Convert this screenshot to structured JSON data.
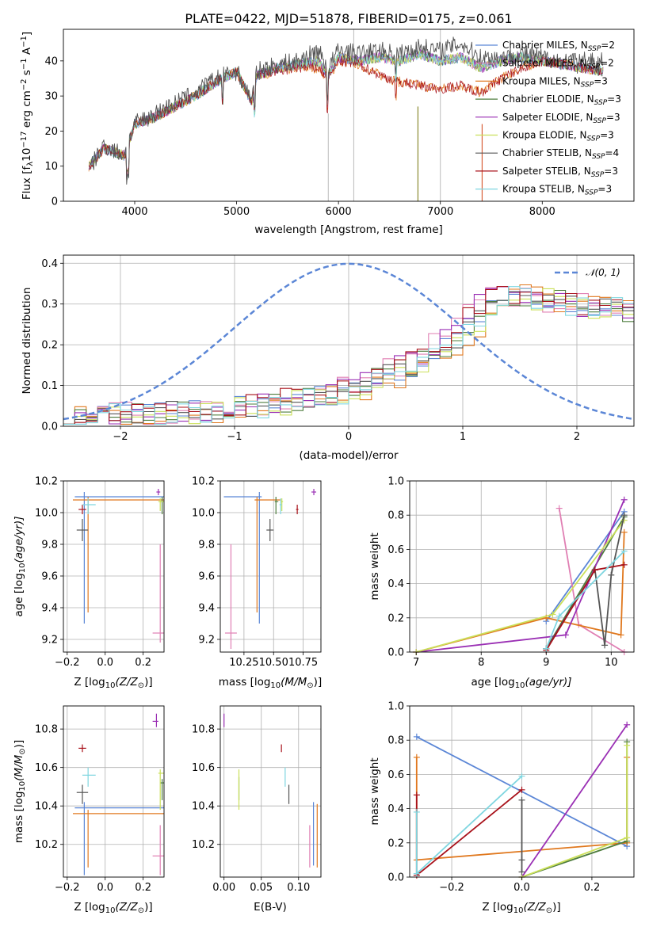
{
  "colors": {
    "chabrier_miles": "#5b86d6",
    "salpeter_miles": "#e07fb3",
    "kroupa_miles": "#e0781e",
    "chabrier_elodie": "#4e7d3e",
    "salpeter_elodie": "#9a2fb4",
    "kroupa_elodie": "#cbe05a",
    "chabrier_stelib": "#555555",
    "salpeter_stelib": "#a8111a",
    "kroupa_stelib": "#7fd6e0",
    "normal_curve": "#5b86d6",
    "grid": "#b0b0b0"
  },
  "spectrum": {
    "title": "PLATE=0422, MJD=51878, FIBERID=0175, z=0.061",
    "xlabel": "wavelength [Angstrom, rest frame]",
    "ylabel_main": "Flux [f",
    "ylabel_sub1": "λ",
    "ylabel_mid": "10",
    "ylabel_sup1": "−17",
    "ylabel_mid2": " erg cm",
    "ylabel_sup2": "−2",
    "ylabel_mid3": " s",
    "ylabel_sup3": "−1",
    "ylabel_end": " A",
    "ylabel_sup4": "−1",
    "ylabel_close": "]",
    "xticks": [
      "4000",
      "5000",
      "6000",
      "7000",
      "8000"
    ],
    "yticks": [
      "0",
      "10",
      "20",
      "30",
      "40"
    ],
    "legend": [
      {
        "label": "Chabrier MILES, N",
        "sub": "SSP",
        "tail": "=2"
      },
      {
        "label": "Salpeter MILES, N",
        "sub": "SSP",
        "tail": "=2"
      },
      {
        "label": "Kroupa MILES, N",
        "sub": "SSP",
        "tail": "=3"
      },
      {
        "label": "Chabrier ELODIE, N",
        "sub": "SSP",
        "tail": "=3"
      },
      {
        "label": "Salpeter ELODIE, N",
        "sub": "SSP",
        "tail": "=3"
      },
      {
        "label": "Kroupa ELODIE, N",
        "sub": "SSP",
        "tail": "=3"
      },
      {
        "label": "Chabrier STELIB, N",
        "sub": "SSP",
        "tail": "=4"
      },
      {
        "label": "Salpeter STELIB, N",
        "sub": "SSP",
        "tail": "=3"
      },
      {
        "label": "Kroupa STELIB, N",
        "sub": "SSP",
        "tail": "=3"
      }
    ]
  },
  "residuals": {
    "xlabel": "(data-model)/error",
    "ylabel": "Normed distribution",
    "xticks": [
      "−2",
      "−1",
      "0",
      "1",
      "2"
    ],
    "yticks": [
      "0.0",
      "0.1",
      "0.2",
      "0.3",
      "0.4"
    ],
    "legend_label": "𝒩(0, 1)"
  },
  "age_vs_z": {
    "xlabel": "Z [log",
    "xlabel_sub": "10",
    "xlabel_tail": "(Z/Z",
    "xlabel_sub2": "⊙",
    "xlabel_end": ")]",
    "ylabel": "age  [log",
    "ylabel_sub": "10",
    "ylabel_tail": "(age/yr)]",
    "xticks": [
      "−0.2",
      "0.0",
      "0.2"
    ],
    "yticks": [
      "9.2",
      "9.4",
      "9.6",
      "9.8",
      "10.0",
      "10.2"
    ]
  },
  "age_vs_mass": {
    "xlabel": "mass [log",
    "xlabel_sub": "10",
    "xlabel_tail": "(M/M",
    "xlabel_sub2": "⊙",
    "xlabel_end": ")]",
    "xticks": [
      "10.25",
      "10.50",
      "10.75"
    ],
    "yticks": [
      "9.2",
      "9.4",
      "9.6",
      "9.8",
      "10.0",
      "10.2"
    ]
  },
  "weight_vs_age": {
    "xlabel": "age  [log",
    "xlabel_sub": "10",
    "xlabel_tail": "(age/yr)]",
    "ylabel": "mass weight",
    "xticks": [
      "7",
      "8",
      "9",
      "10"
    ],
    "yticks": [
      "0.0",
      "0.2",
      "0.4",
      "0.6",
      "0.8",
      "1.0"
    ]
  },
  "mass_vs_z": {
    "xlabel": "Z [log",
    "xlabel_sub": "10",
    "xlabel_tail": "(Z/Z",
    "xlabel_sub2": "⊙",
    "xlabel_end": ")]",
    "ylabel": "mass [log",
    "ylabel_sub": "10",
    "ylabel_tail": "(M/M",
    "ylabel_sub2": "⊙",
    "ylabel_end": ")]",
    "xticks": [
      "−0.2",
      "0.0",
      "0.2"
    ],
    "yticks": [
      "10.2",
      "10.4",
      "10.6",
      "10.8"
    ]
  },
  "mass_vs_ebv": {
    "xlabel": "E(B-V)",
    "xticks": [
      "0.00",
      "0.05",
      "0.10"
    ],
    "yticks": [
      "10.2",
      "10.4",
      "10.6",
      "10.8"
    ]
  },
  "weight_vs_z": {
    "xlabel": "Z [log",
    "xlabel_sub": "10",
    "xlabel_tail": "(Z/Z",
    "xlabel_sub2": "⊙",
    "xlabel_end": ")]",
    "ylabel": "mass weight",
    "xticks": [
      "−0.2",
      "0.0",
      "0.2"
    ],
    "yticks": [
      "0.0",
      "0.2",
      "0.4",
      "0.6",
      "0.8",
      "1.0"
    ]
  },
  "chart_data": [
    {
      "type": "line",
      "title": "PLATE=0422, MJD=51878, FIBERID=0175, z=0.061",
      "xlabel": "wavelength [Angstrom, rest frame]",
      "ylabel": "Flux [fλ10^-17 erg cm^-2 s^-1 A^-1]",
      "xlim": [
        3300,
        8900
      ],
      "ylim": [
        0,
        49
      ],
      "legend_placement": "top-right",
      "grid": false,
      "x": [
        3550,
        3700,
        3900,
        4000,
        4200,
        4400,
        4600,
        4800,
        5000,
        5150,
        5200,
        5400,
        5600,
        5800,
        5900,
        6000,
        6200,
        6400,
        6600,
        6800,
        7000,
        7200,
        7400,
        7600,
        7800,
        8000,
        8200,
        8400,
        8600
      ],
      "series": [
        {
          "name": "Chabrier MILES, N_SSP=2",
          "values": [
            10,
            15,
            13,
            22,
            24,
            27,
            30,
            34,
            37,
            28,
            36,
            38,
            39,
            40,
            36,
            41,
            40,
            41,
            40,
            42,
            40,
            41,
            38,
            40,
            41,
            40,
            39,
            38,
            37
          ]
        },
        {
          "name": "Kroupa MILES, N_SSP=3",
          "values": [
            10,
            15,
            13,
            22,
            24,
            27,
            30,
            34,
            37,
            28,
            36,
            37,
            38,
            38,
            35,
            40,
            39,
            36,
            34,
            33,
            32,
            33,
            31,
            35,
            38,
            40,
            39,
            38,
            37
          ]
        },
        {
          "name": "Chabrier STELIB, N_SSP=4",
          "values": [
            9,
            16,
            13,
            22,
            25,
            28,
            31,
            35,
            37,
            29,
            37,
            39,
            40,
            43,
            38,
            43,
            42,
            43,
            42,
            44,
            43,
            45,
            41,
            41,
            42,
            41,
            40,
            39,
            38
          ]
        }
      ]
    },
    {
      "type": "line",
      "xlabel": "(data-model)/error",
      "ylabel": "Normed distribution",
      "xlim": [
        -2.5,
        2.5
      ],
      "ylim": [
        0,
        0.42
      ],
      "grid": true,
      "legend_placement": "top-right",
      "series": [
        {
          "name": "𝒩(0, 1)",
          "x": [
            -2.5,
            -2.0,
            -1.5,
            -1.0,
            -0.5,
            0.0,
            0.5,
            1.0,
            1.5,
            2.0,
            2.5
          ],
          "values": [
            0.018,
            0.054,
            0.13,
            0.242,
            0.352,
            0.399,
            0.352,
            0.242,
            0.13,
            0.054,
            0.018
          ]
        }
      ]
    },
    {
      "type": "scatter",
      "xlabel": "Z [log10(Z/Z⊙)]",
      "ylabel": "age [log10(age/yr)]",
      "xlim": [
        -0.22,
        0.31
      ],
      "ylim": [
        9.12,
        10.2
      ],
      "grid": true,
      "points": [
        {
          "series": "Chabrier MILES",
          "x": -0.11,
          "y": 10.1
        },
        {
          "series": "Salpeter MILES",
          "x": 0.29,
          "y": 9.24
        },
        {
          "series": "Kroupa MILES",
          "x": -0.09,
          "y": 10.08
        },
        {
          "series": "Chabrier ELODIE",
          "x": 0.3,
          "y": 10.07
        },
        {
          "series": "Salpeter ELODIE",
          "x": 0.28,
          "y": 10.13
        },
        {
          "series": "Kroupa ELODIE",
          "x": 0.29,
          "y": 10.07
        },
        {
          "series": "Chabrier STELIB",
          "x": -0.12,
          "y": 9.89
        },
        {
          "series": "Salpeter STELIB",
          "x": -0.12,
          "y": 10.02
        },
        {
          "series": "Kroupa STELIB",
          "x": -0.09,
          "y": 10.05
        }
      ]
    },
    {
      "type": "scatter",
      "xlabel": "mass [log10(M/M⊙)]",
      "xlim": [
        10.05,
        10.9
      ],
      "ylim": [
        9.12,
        10.2
      ],
      "grid": true,
      "points": [
        {
          "series": "Chabrier MILES",
          "x": 10.38,
          "y": 10.1
        },
        {
          "series": "Salpeter MILES",
          "x": 10.14,
          "y": 9.24
        },
        {
          "series": "Kroupa MILES",
          "x": 10.36,
          "y": 10.08
        },
        {
          "series": "Chabrier ELODIE",
          "x": 10.52,
          "y": 10.07
        },
        {
          "series": "Salpeter ELODIE",
          "x": 10.84,
          "y": 10.13
        },
        {
          "series": "Kroupa ELODIE",
          "x": 10.57,
          "y": 10.07
        },
        {
          "series": "Chabrier STELIB",
          "x": 10.47,
          "y": 9.89
        },
        {
          "series": "Salpeter STELIB",
          "x": 10.7,
          "y": 10.02
        },
        {
          "series": "Kroupa STELIB",
          "x": 10.56,
          "y": 10.05
        }
      ]
    },
    {
      "type": "line",
      "xlabel": "age [log10(age/yr)]",
      "ylabel": "mass weight",
      "xlim": [
        6.9,
        10.35
      ],
      "ylim": [
        0,
        1
      ],
      "grid": true,
      "series": [
        {
          "name": "Chabrier MILES",
          "x": [
            9.0,
            10.2
          ],
          "values": [
            0.18,
            0.82
          ]
        },
        {
          "name": "Salpeter MILES",
          "x": [
            9.2,
            9.5,
            10.2
          ],
          "values": [
            0.84,
            0.16,
            0.0
          ]
        },
        {
          "name": "Kroupa MILES",
          "x": [
            7.0,
            9.0,
            10.15,
            10.2
          ],
          "values": [
            0.0,
            0.2,
            0.1,
            0.7
          ]
        },
        {
          "name": "Chabrier ELODIE",
          "x": [
            9.0,
            10.2
          ],
          "values": [
            0.02,
            0.79
          ]
        },
        {
          "name": "Salpeter ELODIE",
          "x": [
            7.0,
            9.3,
            10.2
          ],
          "values": [
            0.0,
            0.1,
            0.89
          ]
        },
        {
          "name": "Kroupa ELODIE",
          "x": [
            7.0,
            9.1,
            10.2
          ],
          "values": [
            0.0,
            0.22,
            0.77
          ]
        },
        {
          "name": "Chabrier STELIB",
          "x": [
            9.0,
            9.75,
            9.9,
            10.0,
            10.2
          ],
          "values": [
            0.02,
            0.48,
            0.04,
            0.45,
            0.8
          ]
        },
        {
          "name": "Salpeter STELIB",
          "x": [
            9.0,
            9.75,
            10.2
          ],
          "values": [
            0.01,
            0.48,
            0.51
          ]
        },
        {
          "name": "Kroupa STELIB",
          "x": [
            9.0,
            9.2,
            10.2
          ],
          "values": [
            0.02,
            0.21,
            0.59
          ]
        }
      ]
    },
    {
      "type": "scatter",
      "xlabel": "Z [log10(Z/Z⊙)]",
      "ylabel": "mass [log10(M/M⊙)]",
      "xlim": [
        -0.22,
        0.31
      ],
      "ylim": [
        10.03,
        10.92
      ],
      "grid": true,
      "points": [
        {
          "series": "Chabrier MILES",
          "x": -0.11,
          "y": 10.39
        },
        {
          "series": "Salpeter MILES",
          "x": 0.29,
          "y": 10.14
        },
        {
          "series": "Kroupa MILES",
          "x": -0.09,
          "y": 10.36
        },
        {
          "series": "Chabrier ELODIE",
          "x": 0.3,
          "y": 10.52
        },
        {
          "series": "Salpeter ELODIE",
          "x": 0.27,
          "y": 10.84
        },
        {
          "series": "Kroupa ELODIE",
          "x": 0.29,
          "y": 10.57
        },
        {
          "series": "Chabrier STELIB",
          "x": -0.12,
          "y": 10.47
        },
        {
          "series": "Salpeter STELIB",
          "x": -0.12,
          "y": 10.7
        },
        {
          "series": "Kroupa STELIB",
          "x": -0.09,
          "y": 10.56
        }
      ]
    },
    {
      "type": "scatter",
      "xlabel": "E(B-V)",
      "xlim": [
        -0.005,
        0.13
      ],
      "ylim": [
        10.03,
        10.92
      ],
      "grid": true,
      "points": [
        {
          "series": "Chabrier MILES",
          "x": 0.12,
          "y": 10.39
        },
        {
          "series": "Salpeter MILES",
          "x": 0.115,
          "y": 10.14
        },
        {
          "series": "Kroupa MILES",
          "x": 0.125,
          "y": 10.36
        },
        {
          "series": "Chabrier ELODIE",
          "x": 0.02,
          "y": 10.52
        },
        {
          "series": "Salpeter ELODIE",
          "x": 0.0,
          "y": 10.84
        },
        {
          "series": "Kroupa ELODIE",
          "x": 0.02,
          "y": 10.57
        },
        {
          "series": "Chabrier STELIB",
          "x": 0.087,
          "y": 10.47
        },
        {
          "series": "Salpeter STELIB",
          "x": 0.077,
          "y": 10.7
        },
        {
          "series": "Kroupa STELIB",
          "x": 0.082,
          "y": 10.56
        }
      ]
    },
    {
      "type": "line",
      "xlabel": "Z [log10(Z/Z⊙)]",
      "ylabel": "mass weight",
      "xlim": [
        -0.32,
        0.32
      ],
      "ylim": [
        0,
        1
      ],
      "grid": true,
      "series": [
        {
          "name": "Chabrier MILES",
          "x": [
            -0.3,
            0.3
          ],
          "values": [
            0.82,
            0.18
          ]
        },
        {
          "name": "Kroupa MILES",
          "x": [
            -0.3,
            -0.3,
            0.3,
            0.3
          ],
          "values": [
            0.7,
            0.1,
            0.2,
            0.7
          ]
        },
        {
          "name": "Chabrier ELODIE",
          "x": [
            0.0,
            0.3,
            0.3
          ],
          "values": [
            0.0,
            0.21,
            0.79
          ]
        },
        {
          "name": "Salpeter ELODIE",
          "x": [
            0.0,
            0.3
          ],
          "values": [
            0.0,
            0.89
          ]
        },
        {
          "name": "Kroupa ELODIE",
          "x": [
            0.0,
            0.3,
            0.3
          ],
          "values": [
            0.0,
            0.23,
            0.77
          ]
        },
        {
          "name": "Chabrier STELIB",
          "x": [
            0.0,
            0.0,
            0.0
          ],
          "values": [
            0.45,
            0.1,
            0.03
          ]
        },
        {
          "name": "Salpeter STELIB",
          "x": [
            -0.3,
            -0.3,
            0.0
          ],
          "values": [
            0.48,
            0.01,
            0.51
          ]
        },
        {
          "name": "Kroupa STELIB",
          "x": [
            -0.3,
            -0.3,
            0.0
          ],
          "values": [
            0.38,
            0.02,
            0.59
          ]
        }
      ]
    }
  ]
}
